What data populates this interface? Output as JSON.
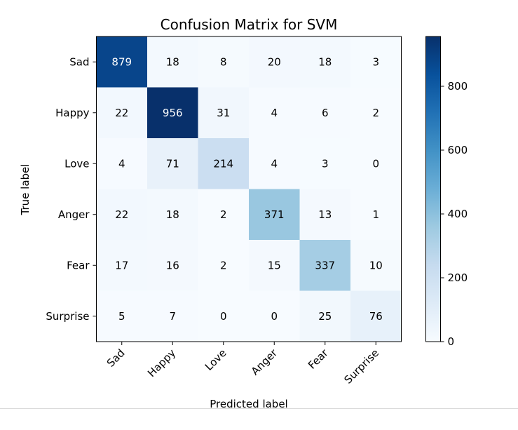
{
  "chart_data": {
    "type": "heatmap",
    "title": "Confusion Matrix for SVM",
    "xlabel": "Predicted label",
    "ylabel": "True label",
    "x_categories": [
      "Sad",
      "Happy",
      "Love",
      "Anger",
      "Fear",
      "Surprise"
    ],
    "y_categories": [
      "Sad",
      "Happy",
      "Love",
      "Anger",
      "Fear",
      "Surprise"
    ],
    "values": [
      [
        879,
        18,
        8,
        20,
        18,
        3
      ],
      [
        22,
        956,
        31,
        4,
        6,
        2
      ],
      [
        4,
        71,
        214,
        4,
        3,
        0
      ],
      [
        22,
        18,
        2,
        371,
        13,
        1
      ],
      [
        17,
        16,
        2,
        15,
        337,
        10
      ],
      [
        5,
        7,
        0,
        0,
        25,
        76
      ]
    ],
    "colormap": "Blues",
    "color_range": [
      0,
      956
    ],
    "colorbar_ticks": [
      0,
      200,
      400,
      600,
      800
    ],
    "x_tick_rotation_deg": 45
  }
}
